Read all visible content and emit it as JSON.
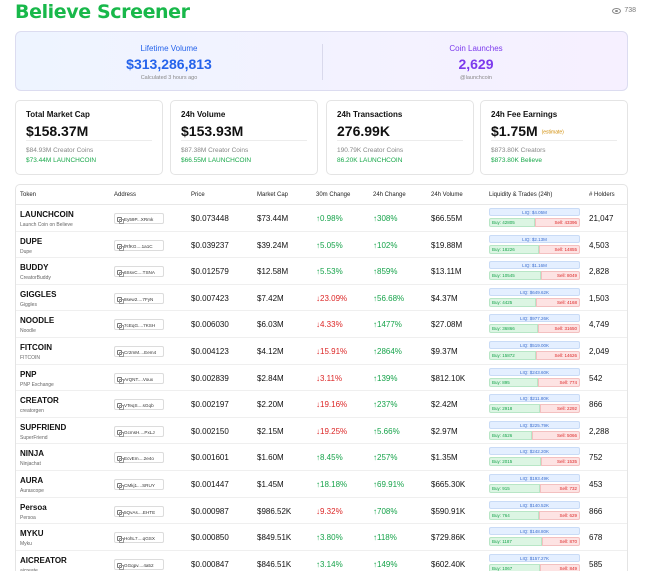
{
  "header": {
    "brand": "Believe Screener",
    "view_count": "738"
  },
  "hero": {
    "left": {
      "label": "Lifetime Volume",
      "value": "$313,286,813",
      "sub": "Calculated 3 hours ago"
    },
    "right": {
      "label": "Coin Launches",
      "value": "2,629",
      "sub": "@launchcoin"
    }
  },
  "stats": [
    {
      "title": "Total Market Cap",
      "value": "$158.37M",
      "tag": "",
      "sub1": "$84.93M Creator Coins",
      "sub2": "$73.44M LAUNCHCOIN"
    },
    {
      "title": "24h Volume",
      "value": "$153.93M",
      "tag": "",
      "sub1": "$87.38M Creator Coins",
      "sub2": "$66.55M LAUNCHCOIN"
    },
    {
      "title": "24h Transactions",
      "value": "276.99K",
      "tag": "",
      "sub1": "190.79K Creator Coins",
      "sub2": "86.20K LAUNCHCOIN"
    },
    {
      "title": "24h Fee Earnings",
      "value": "$1.75M",
      "tag": "(estimate)",
      "sub1": "$873.80K Creators",
      "sub2": "$873.80K Believe"
    }
  ],
  "table": {
    "headers": {
      "token": "Token",
      "address": "Address",
      "price": "Price",
      "market_cap": "Market Cap",
      "change_30m": "30m Change",
      "change_24h": "24h Change",
      "volume_24h": "24h Volume",
      "liquidity": "Liquidity & Trades (24h)",
      "holders": "# Holders"
    },
    "rows": [
      {
        "name": "LAUNCHCOIN",
        "sub": "Launch Coin on Believe",
        "address": "Ey59P...XRmk",
        "price": "$0.073448",
        "mcap": "$73.44M",
        "ch30": "↑0.98%",
        "ch30_up": true,
        "ch24": "↑308%",
        "ch24_up": true,
        "vol": "$66.55M",
        "liq": "LIQ: $4.05M",
        "buy": "Buy: 42805",
        "sell": "Sell: 43396",
        "buy_ratio": 0.5,
        "holders": "21,047"
      },
      {
        "name": "DUPE",
        "sub": "Dupe",
        "address": "fRfKG....1a1C",
        "price": "$0.039237",
        "mcap": "$39.24M",
        "ch30": "↑5.05%",
        "ch30_up": true,
        "ch24": "↑102%",
        "ch24_up": true,
        "vol": "$19.88M",
        "liq": "LIQ: $2.13M",
        "buy": "Buy: 18226",
        "sell": "Sell: 14855",
        "buy_ratio": 0.55,
        "holders": "4,503"
      },
      {
        "name": "BUDDY",
        "sub": "CreatorBuddy",
        "address": "6SsvC....TSNA",
        "price": "$0.012579",
        "mcap": "$12.58M",
        "ch30": "↑5.53%",
        "ch30_up": true,
        "ch24": "↑859%",
        "ch24_up": true,
        "vol": "$13.11M",
        "liq": "LIQ: $1.16M",
        "buy": "Buy: 10545",
        "sell": "Sell: 8049",
        "buy_ratio": 0.57,
        "holders": "2,828"
      },
      {
        "name": "GIGGLES",
        "sub": "Giggles",
        "address": "8sew2....7FyN",
        "price": "$0.007423",
        "mcap": "$7.42M",
        "ch30": "↓23.09%",
        "ch30_up": false,
        "ch24": "↑56.68%",
        "ch24_up": true,
        "vol": "$4.37M",
        "liq": "LIQ: $649.62K",
        "buy": "Buy: 4425",
        "sell": "Sell: 4168",
        "buy_ratio": 0.52,
        "holders": "1,503"
      },
      {
        "name": "NOODLE",
        "sub": "Noodle",
        "address": "7cEqG....7KSH",
        "price": "$0.006030",
        "mcap": "$6.03M",
        "ch30": "↓4.33%",
        "ch30_up": false,
        "ch24": "↑1477%",
        "ch24_up": true,
        "vol": "$27.08M",
        "liq": "LIQ: $977.26K",
        "buy": "Buy: 36866",
        "sell": "Sell: 31650",
        "buy_ratio": 0.54,
        "holders": "4,749"
      },
      {
        "name": "FITCOIN",
        "sub": "FITCOIN",
        "address": "Cr2mM....Eem4",
        "price": "$0.004123",
        "mcap": "$4.12M",
        "ch30": "↓15.91%",
        "ch30_up": false,
        "ch24": "↑2864%",
        "ch24_up": true,
        "vol": "$9.37M",
        "liq": "LIQ: $519.00K",
        "buy": "Buy: 15872",
        "sell": "Sell: 14626",
        "buy_ratio": 0.52,
        "holders": "2,049"
      },
      {
        "name": "PNP",
        "sub": "PNP Exchange",
        "address": "ArQNT....Voux",
        "price": "$0.002839",
        "mcap": "$2.84M",
        "ch30": "↓3.11%",
        "ch30_up": false,
        "ch24": "↑139%",
        "ch24_up": true,
        "vol": "$812.10K",
        "liq": "LIQ: $243.60K",
        "buy": "Buy: 895",
        "sell": "Sell: 774",
        "buy_ratio": 0.54,
        "holders": "542"
      },
      {
        "name": "CREATOR",
        "sub": "creatorgen",
        "address": "VTeqS....sGqb",
        "price": "$0.002197",
        "mcap": "$2.20M",
        "ch30": "↓19.16%",
        "ch30_up": false,
        "ch24": "↑237%",
        "ch24_up": true,
        "vol": "$2.42M",
        "liq": "LIQ: $211.80K",
        "buy": "Buy: 2918",
        "sell": "Sell: 2292",
        "buy_ratio": 0.56,
        "holders": "866"
      },
      {
        "name": "SUPFRIEND",
        "sub": "SuperFriend",
        "address": "GcmsH....PxLJ",
        "price": "$0.002150",
        "mcap": "$2.15M",
        "ch30": "↓19.25%",
        "ch30_up": false,
        "ch24": "↑5.66%",
        "ch24_up": true,
        "vol": "$2.97M",
        "liq": "LIQ: $225.79K",
        "buy": "Buy: 4526",
        "sell": "Sell: 5066",
        "buy_ratio": 0.47,
        "holders": "2,288"
      },
      {
        "name": "NINJA",
        "sub": "Ninjachat",
        "address": "EcvEm....2e4o",
        "price": "$0.001601",
        "mcap": "$1.60M",
        "ch30": "↑8.45%",
        "ch30_up": true,
        "ch24": "↑257%",
        "ch24_up": true,
        "vol": "$1.35M",
        "liq": "LIQ: $242.20K",
        "buy": "Buy: 2015",
        "sell": "Sell: 1535",
        "buy_ratio": 0.57,
        "holders": "752"
      },
      {
        "name": "AURA",
        "sub": "Aurascope",
        "address": "CMkj1....SRUY",
        "price": "$0.001447",
        "mcap": "$1.45M",
        "ch30": "↑18.18%",
        "ch30_up": true,
        "ch24": "↑69.91%",
        "ch24_up": true,
        "vol": "$665.30K",
        "liq": "LIQ: $193.49K",
        "buy": "Buy: 915",
        "sell": "Sell: 732",
        "buy_ratio": 0.56,
        "holders": "453"
      },
      {
        "name": "Persoa",
        "sub": "Persoa",
        "address": "5QvAs....EHTE",
        "price": "$0.000987",
        "mcap": "$986.52K",
        "ch30": "↓9.32%",
        "ch30_up": false,
        "ch24": "↑708%",
        "ch24_up": true,
        "vol": "$590.91K",
        "liq": "LIQ: $140.52K",
        "buy": "Buy: 764",
        "sell": "Sell: 629",
        "buy_ratio": 0.55,
        "holders": "866"
      },
      {
        "name": "MYKU",
        "sub": "Myku",
        "address": "HohL7....qGSX",
        "price": "$0.000850",
        "mcap": "$849.51K",
        "ch30": "↑3.80%",
        "ch30_up": true,
        "ch24": "↑118%",
        "ch24_up": true,
        "vol": "$729.86K",
        "liq": "LIQ: $148.80K",
        "buy": "Buy: 1187",
        "sell": "Sell: 870",
        "buy_ratio": 0.58,
        "holders": "678"
      },
      {
        "name": "AICREATOR",
        "sub": "aicreate",
        "address": "GGqpv....4a52",
        "price": "$0.000847",
        "mcap": "$846.51K",
        "ch30": "↑3.14%",
        "ch30_up": true,
        "ch24": "↑149%",
        "ch24_up": true,
        "vol": "$602.40K",
        "liq": "LIQ: $157.27K",
        "buy": "Buy: 1067",
        "sell": "Sell: 849",
        "buy_ratio": 0.56,
        "holders": "585"
      }
    ]
  }
}
